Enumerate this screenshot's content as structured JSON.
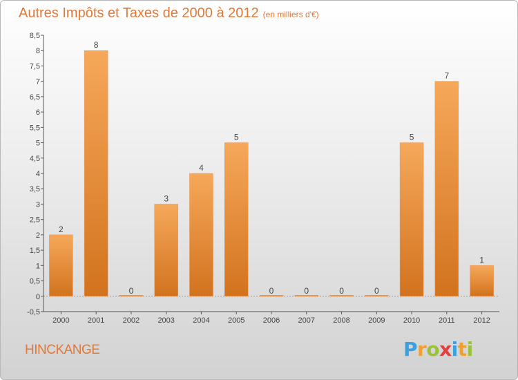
{
  "header": {
    "title": "Autres Impôts et Taxes de 2000 à 2012",
    "unit": "(en milliers d'€)"
  },
  "footer": {
    "town": "HINCKANGE",
    "logo_text": "Proxiti"
  },
  "logo_letters": [
    {
      "ch": "P",
      "color": "#3aa0e0"
    },
    {
      "ch": "r",
      "color": "#f0a030"
    },
    {
      "ch": "o",
      "color": "#9ac23a"
    },
    {
      "ch": "x",
      "color": "#e04040"
    },
    {
      "ch": "i",
      "color": "#3aa0e0"
    },
    {
      "ch": "t",
      "color": "#f0a030"
    },
    {
      "ch": "i",
      "color": "#9ac23a"
    }
  ],
  "chart_data": {
    "type": "bar",
    "title": "Autres Impôts et Taxes de 2000 à 2012",
    "subtitle": "(en milliers d'€)",
    "categories": [
      "2000",
      "2001",
      "2002",
      "2003",
      "2004",
      "2005",
      "2006",
      "2007",
      "2008",
      "2009",
      "2010",
      "2011",
      "2012"
    ],
    "values": [
      2,
      8,
      0,
      3,
      4,
      5,
      0,
      0,
      0,
      0,
      5,
      7,
      1
    ],
    "data_labels": [
      "2",
      "8",
      "0",
      "3",
      "4",
      "5",
      "0",
      "0",
      "0",
      "0",
      "5",
      "7",
      "1"
    ],
    "y_ticks": [
      "-0,5",
      "0",
      "0,5",
      "1",
      "1,5",
      "2",
      "2,5",
      "3",
      "3,5",
      "4",
      "4,5",
      "5",
      "5,5",
      "6",
      "6,5",
      "7",
      "7,5",
      "8",
      "8,5"
    ],
    "ylim": [
      -0.5,
      8.5
    ],
    "grid": false,
    "bar_color_top": "#f6a85a",
    "bar_color_bottom": "#d2731e"
  }
}
